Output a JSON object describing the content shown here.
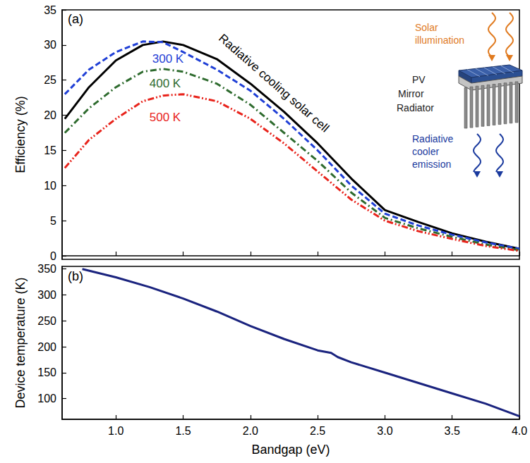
{
  "chart_data": [
    {
      "type": "line",
      "panel": "(a)",
      "x": [
        0.62,
        0.8,
        1.0,
        1.2,
        1.35,
        1.5,
        1.75,
        2.0,
        2.25,
        2.5,
        2.75,
        3.0,
        3.25,
        3.5,
        3.75,
        4.0
      ],
      "series": [
        {
          "name": "Radiative cooling solar cell",
          "color": "#000000",
          "line_style": "solid",
          "values": [
            19.5,
            24,
            27.8,
            30,
            30.5,
            30,
            28,
            24.5,
            20.5,
            16,
            11,
            6.5,
            4.8,
            3.2,
            2,
            1.0
          ]
        },
        {
          "name": "300 K",
          "color": "#1f3fd6",
          "line_style": "dashed",
          "values": [
            23,
            26.5,
            29,
            30.5,
            30.4,
            29,
            26.5,
            23.5,
            19.5,
            15,
            10,
            6,
            4.3,
            3,
            1.9,
            1.0
          ]
        },
        {
          "name": "400 K",
          "color": "#2e6b2e",
          "line_style": "dashdot",
          "values": [
            17.5,
            21,
            24,
            26.2,
            26.6,
            26.2,
            24.5,
            21.5,
            17.5,
            13.5,
            9,
            5.4,
            3.9,
            2.7,
            1.6,
            0.8
          ]
        },
        {
          "name": "500 K",
          "color": "#e8231b",
          "line_style": "dashdotdot",
          "values": [
            12.5,
            16.5,
            19.5,
            22,
            22.8,
            23,
            22,
            19.5,
            16,
            12,
            8,
            5,
            3.5,
            2.4,
            1.4,
            0.7
          ]
        }
      ],
      "ylabel": "Efficiency (%)",
      "xlim": [
        0.6,
        4.0
      ],
      "xticks": [
        {
          "value": 1,
          "label": "1.0"
        },
        {
          "value": 1.5,
          "label": "1.5"
        },
        {
          "value": 2,
          "label": "2.0"
        },
        {
          "value": 2.5,
          "label": "2.5"
        },
        {
          "value": 3,
          "label": "3.0"
        },
        {
          "value": 3.5,
          "label": "3.5"
        },
        {
          "value": 4,
          "label": "4.0"
        }
      ],
      "ylim": [
        -0.5,
        35
      ],
      "yticks": [
        0,
        5,
        10,
        15,
        20,
        25,
        30,
        35
      ],
      "tick_labels": "y",
      "grid": false,
      "annotations": [
        "Solar illumination",
        "PV",
        "Mirror",
        "Radiator",
        "Radiative cooler emission"
      ]
    },
    {
      "type": "line",
      "panel": "(b)",
      "x": [
        0.75,
        1.0,
        1.25,
        1.5,
        1.75,
        2.0,
        2.25,
        2.5,
        2.6,
        2.65,
        2.75,
        3.0,
        3.25,
        3.5,
        3.75,
        4.0
      ],
      "series": [
        {
          "color": "#1a237e",
          "line_style": "solid",
          "values": [
            350,
            334,
            315,
            293,
            268,
            240,
            215,
            193,
            188,
            180,
            170,
            150,
            130,
            110,
            90,
            66
          ]
        }
      ],
      "xlabel": "Bandgap (eV)",
      "ylabel": "Device temperature (K)",
      "xlim": [
        0.6,
        4.0
      ],
      "xticks": [
        {
          "value": 1,
          "label": "1.0"
        },
        {
          "value": 1.5,
          "label": "1.5"
        },
        {
          "value": 2,
          "label": "2.0"
        },
        {
          "value": 2.5,
          "label": "2.5"
        },
        {
          "value": 3,
          "label": "3.0"
        },
        {
          "value": 3.5,
          "label": "3.5"
        },
        {
          "value": 4,
          "label": "4.0"
        }
      ],
      "ylim": [
        60,
        355
      ],
      "yticks": [
        100,
        150,
        200,
        250,
        300,
        350
      ],
      "grid": false
    }
  ]
}
